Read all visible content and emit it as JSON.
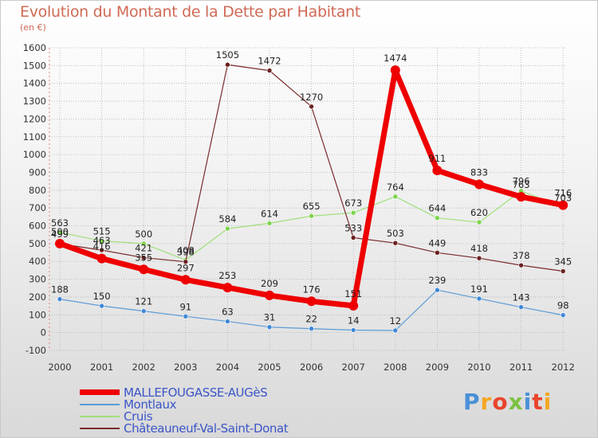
{
  "title": "Evolution du Montant de la Dette par Habitant",
  "subtitle": "(en €)",
  "logo": "Proxiti",
  "colors": {
    "background_top": "#ffffff",
    "background_bottom": "#d9d9d9",
    "title": "#d06a55",
    "legend_text": "#3b55c7",
    "grid": "#b0b0b0",
    "axis_text": "#333333"
  },
  "chart_data": {
    "type": "line",
    "title": "Evolution du Montant de la Dette par Habitant",
    "ylabel": "(en €)",
    "xlabel": "",
    "ylim": [
      -100,
      1600
    ],
    "yticks": [
      -100,
      0,
      100,
      200,
      300,
      400,
      500,
      600,
      700,
      800,
      900,
      1000,
      1100,
      1200,
      1300,
      1400,
      1500,
      1600
    ],
    "grid": true,
    "legend_position": "bottom-left",
    "categories": [
      "2000",
      "2001",
      "2002",
      "2003",
      "2004",
      "2005",
      "2006",
      "2007",
      "2008",
      "2009",
      "2010",
      "2011",
      "2012"
    ],
    "series": [
      {
        "name": "Montlaux",
        "color": "#5b9bd5",
        "marker": "#3f88d8",
        "width": 1.2,
        "radius": 3,
        "values": [
          188,
          150,
          121,
          91,
          63,
          31,
          22,
          14,
          12,
          239,
          191,
          143,
          98
        ],
        "labels": [
          "188",
          "150",
          "121",
          "91",
          "63",
          "31",
          "22",
          "14",
          "12",
          "239",
          "191",
          "143",
          "98"
        ]
      },
      {
        "name": "Cruis",
        "color": "#9fe07a",
        "marker": "#7cd44b",
        "width": 1.2,
        "radius": 3,
        "values": [
          563,
          515,
          500,
          408,
          584,
          614,
          655,
          673,
          764,
          644,
          620,
          796,
          703
        ],
        "labels": [
          "563",
          "515",
          "500",
          "408",
          "584",
          "614",
          "655",
          "673",
          "764",
          "644",
          "620",
          "796",
          "703"
        ]
      },
      {
        "name": "Châteauneuf-Val-Saint-Donat",
        "color": "#7a2b2b",
        "marker": "#6b1f1f",
        "width": 1.2,
        "radius": 3,
        "values": [
          499,
          463,
          421,
          398,
          1505,
          1472,
          1270,
          533,
          503,
          449,
          418,
          378,
          345
        ],
        "labels": [
          "499",
          "463",
          "421",
          "398",
          "1505",
          "1472",
          "1270",
          "533",
          "503",
          "449",
          "418",
          "378",
          "345"
        ]
      },
      {
        "name": "MALLEFOUGASSE-AUGèS",
        "color": "#ee0000",
        "marker": "#ee0000",
        "width": 7,
        "radius": 6,
        "values": [
          500,
          416,
          355,
          297,
          253,
          209,
          176,
          151,
          1474,
          911,
          833,
          763,
          716
        ],
        "labels": [
          "500",
          "416",
          "355",
          "297",
          "253",
          "209",
          "176",
          "151",
          "1474",
          "911",
          "833",
          "763",
          "716"
        ]
      }
    ]
  },
  "legend": [
    {
      "label": "MALLEFOUGASSE-AUGèS",
      "color": "#ee0000",
      "thickness": 7
    },
    {
      "label": "Montlaux",
      "color": "#5b9bd5",
      "thickness": 2
    },
    {
      "label": "Cruis",
      "color": "#9fe07a",
      "thickness": 2
    },
    {
      "label": "Châteauneuf-Val-Saint-Donat",
      "color": "#7a2b2b",
      "thickness": 2
    }
  ]
}
